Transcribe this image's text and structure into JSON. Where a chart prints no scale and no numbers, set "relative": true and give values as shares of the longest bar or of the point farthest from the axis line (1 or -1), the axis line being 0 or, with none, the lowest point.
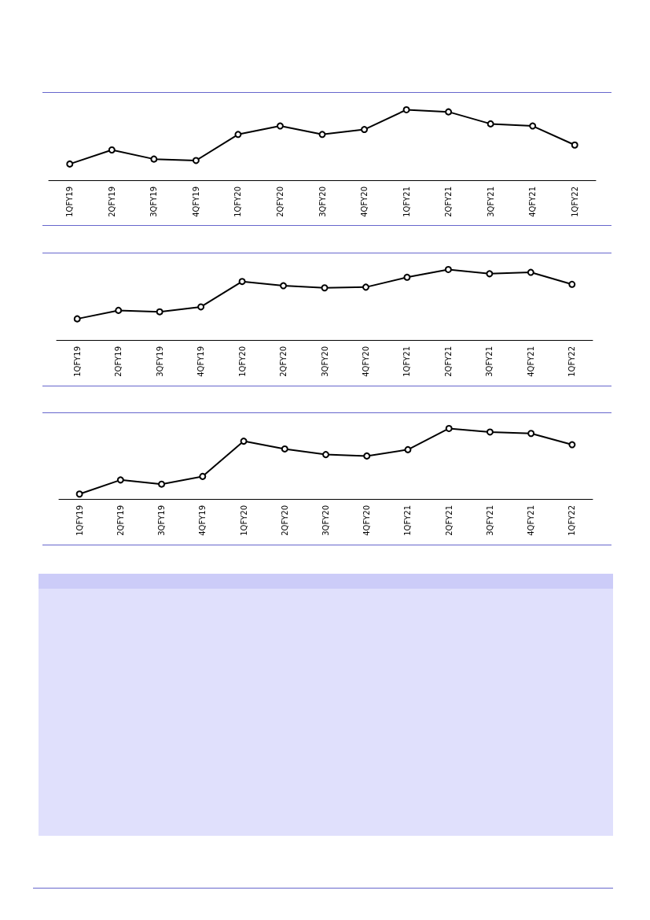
{
  "chart_data": [
    {
      "type": "line",
      "relative": true,
      "categories": [
        "1QFY19",
        "2QFY19",
        "3QFY19",
        "4QFY19",
        "1QFY20",
        "2QFY20",
        "3QFY20",
        "4QFY20",
        "1QFY21",
        "2QFY21",
        "3QFY21",
        "4QFY21",
        "1QFY22"
      ],
      "series": [
        {
          "color": "#000000",
          "values": [
            0.23,
            0.43,
            0.3,
            0.28,
            0.65,
            0.77,
            0.65,
            0.72,
            1,
            0.97,
            0.8,
            0.77,
            0.5
          ]
        }
      ],
      "marker": "circle",
      "line_style": "solid",
      "grid": false
    },
    {
      "type": "line",
      "relative": true,
      "categories": [
        "1QFY19",
        "2QFY19",
        "3QFY19",
        "4QFY19",
        "1QFY20",
        "2QFY20",
        "3QFY20",
        "4QFY20",
        "1QFY21",
        "2QFY21",
        "3QFY21",
        "4QFY21",
        "1QFY22"
      ],
      "series": [
        {
          "color": "#000000",
          "values": [
            0.3,
            0.42,
            0.4,
            0.47,
            0.83,
            0.77,
            0.74,
            0.75,
            0.89,
            1,
            0.94,
            0.96,
            0.79
          ]
        }
      ],
      "marker": "circle",
      "line_style": "solid",
      "grid": false
    },
    {
      "type": "line",
      "relative": true,
      "categories": [
        "1QFY19",
        "2QFY19",
        "3QFY19",
        "4QFY19",
        "1QFY20",
        "2QFY20",
        "3QFY20",
        "4QFY20",
        "1QFY21",
        "2QFY21",
        "3QFY21",
        "4QFY21",
        "1QFY22"
      ],
      "series": [
        {
          "color": "#000000",
          "values": [
            0.07,
            0.27,
            0.21,
            0.32,
            0.82,
            0.71,
            0.63,
            0.61,
            0.7,
            1,
            0.95,
            0.93,
            0.77
          ]
        }
      ],
      "marker": "circle",
      "line_style": "solid",
      "grid": false
    }
  ]
}
